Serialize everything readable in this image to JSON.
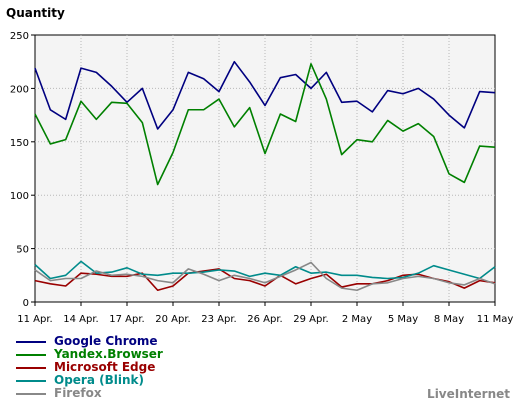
{
  "chart_data": {
    "type": "line",
    "ylabel": "Quantity",
    "ylim": [
      0,
      250
    ],
    "yticks": [
      0,
      50,
      100,
      150,
      200,
      250
    ],
    "x": [
      "11 Apr.",
      "12 Apr.",
      "13 Apr.",
      "14 Apr.",
      "15 Apr.",
      "16 Apr.",
      "17 Apr.",
      "18 Apr.",
      "19 Apr.",
      "20 Apr.",
      "21 Apr.",
      "22 Apr.",
      "23 Apr.",
      "24 Apr.",
      "25 Apr.",
      "26 Apr.",
      "27 Apr.",
      "28 Apr.",
      "29 Apr.",
      "30 Apr.",
      "1 May",
      "2 May",
      "3 May",
      "4 May",
      "5 May",
      "6 May",
      "7 May",
      "8 May",
      "9 May",
      "10 May",
      "11 May"
    ],
    "xtick_labels": [
      "11 Apr.",
      "14 Apr.",
      "17 Apr.",
      "20 Apr.",
      "23 Apr.",
      "26 Apr.",
      "29 Apr.",
      "2 May",
      "5 May",
      "8 May",
      "11 May"
    ],
    "grid": true,
    "legend_position": "bottom-left",
    "series": [
      {
        "name": "Google Chrome",
        "color": "#000080",
        "values": [
          219,
          180,
          171,
          219,
          215,
          202,
          187,
          200,
          162,
          180,
          215,
          209,
          197,
          225,
          206,
          184,
          210,
          213,
          200,
          215,
          187,
          188,
          178,
          198,
          195,
          200,
          190,
          175,
          163,
          197,
          196
        ]
      },
      {
        "name": "Yandex.Browser",
        "color": "#008000",
        "values": [
          176,
          148,
          152,
          188,
          171,
          187,
          186,
          168,
          110,
          140,
          180,
          180,
          190,
          164,
          182,
          139,
          176,
          169,
          223,
          190,
          138,
          152,
          150,
          170,
          160,
          167,
          155,
          120,
          112,
          146,
          145
        ]
      },
      {
        "name": "Microsoft Edge",
        "color": "#990000",
        "values": [
          20,
          17,
          15,
          27,
          26,
          24,
          24,
          27,
          11,
          15,
          27,
          29,
          31,
          22,
          20,
          15,
          25,
          17,
          22,
          26,
          14,
          17,
          17,
          20,
          25,
          26,
          22,
          19,
          13,
          20,
          18
        ]
      },
      {
        "name": "Opera (Blink)",
        "color": "#008B8B",
        "values": [
          35,
          22,
          25,
          38,
          27,
          28,
          32,
          26,
          25,
          27,
          27,
          28,
          30,
          29,
          24,
          27,
          25,
          33,
          27,
          28,
          25,
          25,
          23,
          22,
          23,
          27,
          34,
          30,
          26,
          22,
          33
        ]
      },
      {
        "name": "Firefox",
        "color": "#888888",
        "values": [
          30,
          20,
          22,
          22,
          29,
          25,
          26,
          24,
          20,
          18,
          31,
          26,
          20,
          25,
          22,
          18,
          24,
          30,
          37,
          22,
          13,
          11,
          17,
          18,
          22,
          24,
          22,
          18,
          16,
          22,
          17
        ]
      }
    ]
  },
  "brand": "LiveInternet"
}
